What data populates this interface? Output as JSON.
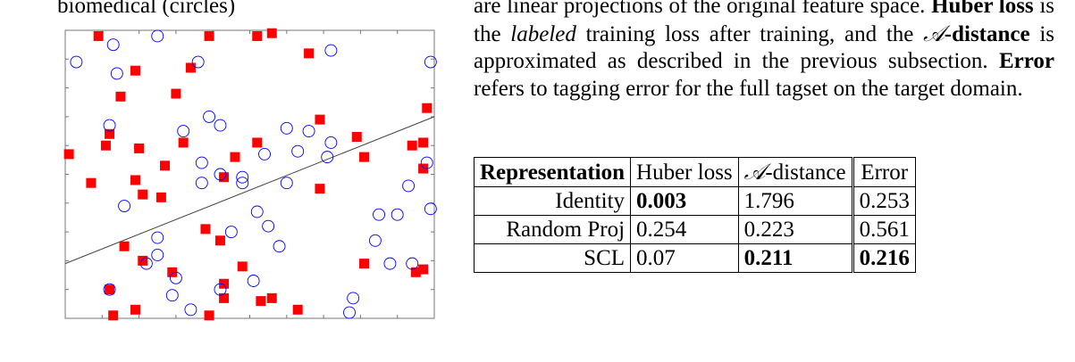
{
  "caption_fragment": "biomedical (circles)",
  "paragraph": {
    "p1": "are linear projections of the original feature space.",
    "huber_term": "Huber loss",
    "p2": "is the",
    "labeled": "labeled",
    "p3": "training loss after training, and the",
    "a_symbol": "𝒜",
    "distance_term": "-distance",
    "p4": "is approximated as described in the previous subsection.",
    "error_term": "Error",
    "p5": "refers to tagging error for the full tagset on the target domain."
  },
  "table": {
    "headers": [
      "Representation",
      "Huber loss",
      "-distance",
      "Error"
    ],
    "a_symbol": "𝒜",
    "rows": [
      {
        "rep": "Identity",
        "huber": "0.003",
        "adist": "1.796",
        "error": "0.253"
      },
      {
        "rep": "Random Proj",
        "huber": "0.254",
        "adist": "0.223",
        "error": "0.561"
      },
      {
        "rep": "SCL",
        "huber": "0.07",
        "adist": "0.211",
        "error": "0.216"
      }
    ]
  },
  "chart_data": {
    "type": "scatter",
    "xlim": [
      0,
      1
    ],
    "ylim": [
      0,
      1
    ],
    "grid": false,
    "series": [
      {
        "marker": "square",
        "color": "#ff0000",
        "points": [
          [
            0.09,
            0.98
          ],
          [
            0.39,
            0.98
          ],
          [
            0.52,
            0.98
          ],
          [
            0.56,
            0.99
          ],
          [
            0.66,
            0.92
          ],
          [
            0.19,
            0.86
          ],
          [
            0.34,
            0.87
          ],
          [
            0.15,
            0.77
          ],
          [
            0.3,
            0.78
          ],
          [
            0.98,
            0.73
          ],
          [
            0.69,
            0.69
          ],
          [
            0.12,
            0.64
          ],
          [
            0.79,
            0.63
          ],
          [
            0.11,
            0.6
          ],
          [
            0.2,
            0.59
          ],
          [
            0.32,
            0.61
          ],
          [
            0.52,
            0.61
          ],
          [
            0.46,
            0.56
          ],
          [
            0.81,
            0.56
          ],
          [
            0.94,
            0.6
          ],
          [
            0.97,
            0.61
          ],
          [
            0.01,
            0.57
          ],
          [
            0.27,
            0.53
          ],
          [
            0.97,
            0.52
          ],
          [
            0.43,
            0.49
          ],
          [
            0.07,
            0.47
          ],
          [
            0.19,
            0.48
          ],
          [
            0.69,
            0.45
          ],
          [
            0.21,
            0.43
          ],
          [
            0.26,
            0.42
          ],
          [
            0.38,
            0.31
          ],
          [
            0.42,
            0.27
          ],
          [
            0.16,
            0.25
          ],
          [
            0.21,
            0.2
          ],
          [
            0.81,
            0.19
          ],
          [
            0.29,
            0.16
          ],
          [
            0.48,
            0.18
          ],
          [
            0.43,
            0.12
          ],
          [
            0.12,
            0.1
          ],
          [
            0.43,
            0.07
          ],
          [
            0.53,
            0.06
          ],
          [
            0.56,
            0.07
          ],
          [
            0.19,
            0.03
          ],
          [
            0.63,
            0.03
          ],
          [
            0.13,
            0.01
          ],
          [
            0.39,
            0.01
          ],
          [
            0.97,
            0.17
          ],
          [
            0.95,
            0.16
          ]
        ]
      },
      {
        "marker": "circle",
        "color": "#0000ff",
        "points": [
          [
            0.13,
            0.95
          ],
          [
            0.25,
            0.98
          ],
          [
            0.03,
            0.89
          ],
          [
            0.14,
            0.85
          ],
          [
            0.36,
            0.89
          ],
          [
            0.72,
            0.93
          ],
          [
            0.99,
            0.89
          ],
          [
            0.12,
            0.67
          ],
          [
            0.32,
            0.65
          ],
          [
            0.39,
            0.7
          ],
          [
            0.42,
            0.67
          ],
          [
            0.6,
            0.66
          ],
          [
            0.66,
            0.65
          ],
          [
            0.72,
            0.61
          ],
          [
            0.54,
            0.57
          ],
          [
            0.63,
            0.58
          ],
          [
            0.71,
            0.56
          ],
          [
            0.37,
            0.54
          ],
          [
            0.42,
            0.5
          ],
          [
            0.48,
            0.49
          ],
          [
            0.48,
            0.47
          ],
          [
            0.37,
            0.47
          ],
          [
            0.6,
            0.47
          ],
          [
            0.98,
            0.54
          ],
          [
            0.93,
            0.46
          ],
          [
            0.16,
            0.39
          ],
          [
            0.52,
            0.37
          ],
          [
            0.55,
            0.32
          ],
          [
            0.58,
            0.25
          ],
          [
            0.45,
            0.3
          ],
          [
            0.85,
            0.36
          ],
          [
            0.9,
            0.36
          ],
          [
            0.84,
            0.27
          ],
          [
            0.99,
            0.38
          ],
          [
            0.25,
            0.28
          ],
          [
            0.25,
            0.22
          ],
          [
            0.22,
            0.19
          ],
          [
            0.3,
            0.14
          ],
          [
            0.12,
            0.1
          ],
          [
            0.29,
            0.08
          ],
          [
            0.51,
            0.13
          ],
          [
            0.42,
            0.1
          ],
          [
            0.88,
            0.19
          ],
          [
            0.94,
            0.19
          ],
          [
            0.78,
            0.07
          ],
          [
            0.77,
            0.02
          ],
          [
            0.34,
            0.03
          ]
        ]
      }
    ],
    "separator_line": [
      [
        0.0,
        0.19
      ],
      [
        1.0,
        0.7
      ]
    ]
  }
}
